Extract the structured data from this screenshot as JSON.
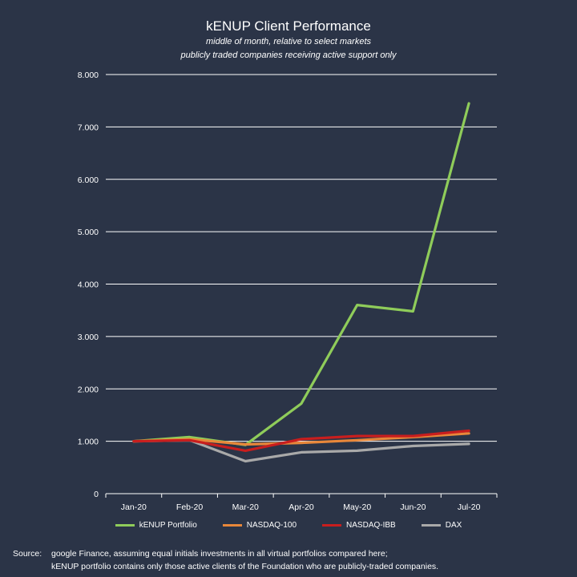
{
  "chart_data": {
    "type": "line",
    "title": "kENUP Client Performance",
    "subtitle_lines": [
      "middle of month, relative to select markets",
      "publicly traded companies receiving active support only"
    ],
    "categories": [
      "Jan-20",
      "Feb-20",
      "Mar-20",
      "Apr-20",
      "May-20",
      "Jun-20",
      "Jul-20"
    ],
    "y_ticks": [
      "0",
      "1.000",
      "2.000",
      "3.000",
      "4.000",
      "5.000",
      "6.000",
      "7.000",
      "8.000"
    ],
    "ylim": [
      0,
      8
    ],
    "grid": true,
    "legend_position": "bottom",
    "series": [
      {
        "name": "kENUP Portfolio",
        "color": "#8fcc5a",
        "values": [
          1.0,
          1.08,
          0.93,
          1.72,
          3.6,
          3.48,
          7.45
        ]
      },
      {
        "name": "NASDAQ-100",
        "color": "#e8873a",
        "values": [
          1.0,
          1.04,
          0.94,
          0.97,
          1.02,
          1.08,
          1.15
        ]
      },
      {
        "name": "NASDAQ-IBB",
        "color": "#c81e1e",
        "values": [
          1.0,
          1.02,
          0.82,
          1.04,
          1.1,
          1.1,
          1.2
        ]
      },
      {
        "name": "DAX",
        "color": "#a9a9a9",
        "values": [
          1.0,
          1.02,
          0.62,
          0.79,
          0.82,
          0.91,
          0.95
        ]
      }
    ]
  },
  "source": {
    "label": "Source:",
    "line1": "google Finance, assuming equal initials investments in all virtual portfolios compared here;",
    "line2": "kENUP portfolio contains only those active clients of the Foundation who are publicly-traded companies."
  }
}
